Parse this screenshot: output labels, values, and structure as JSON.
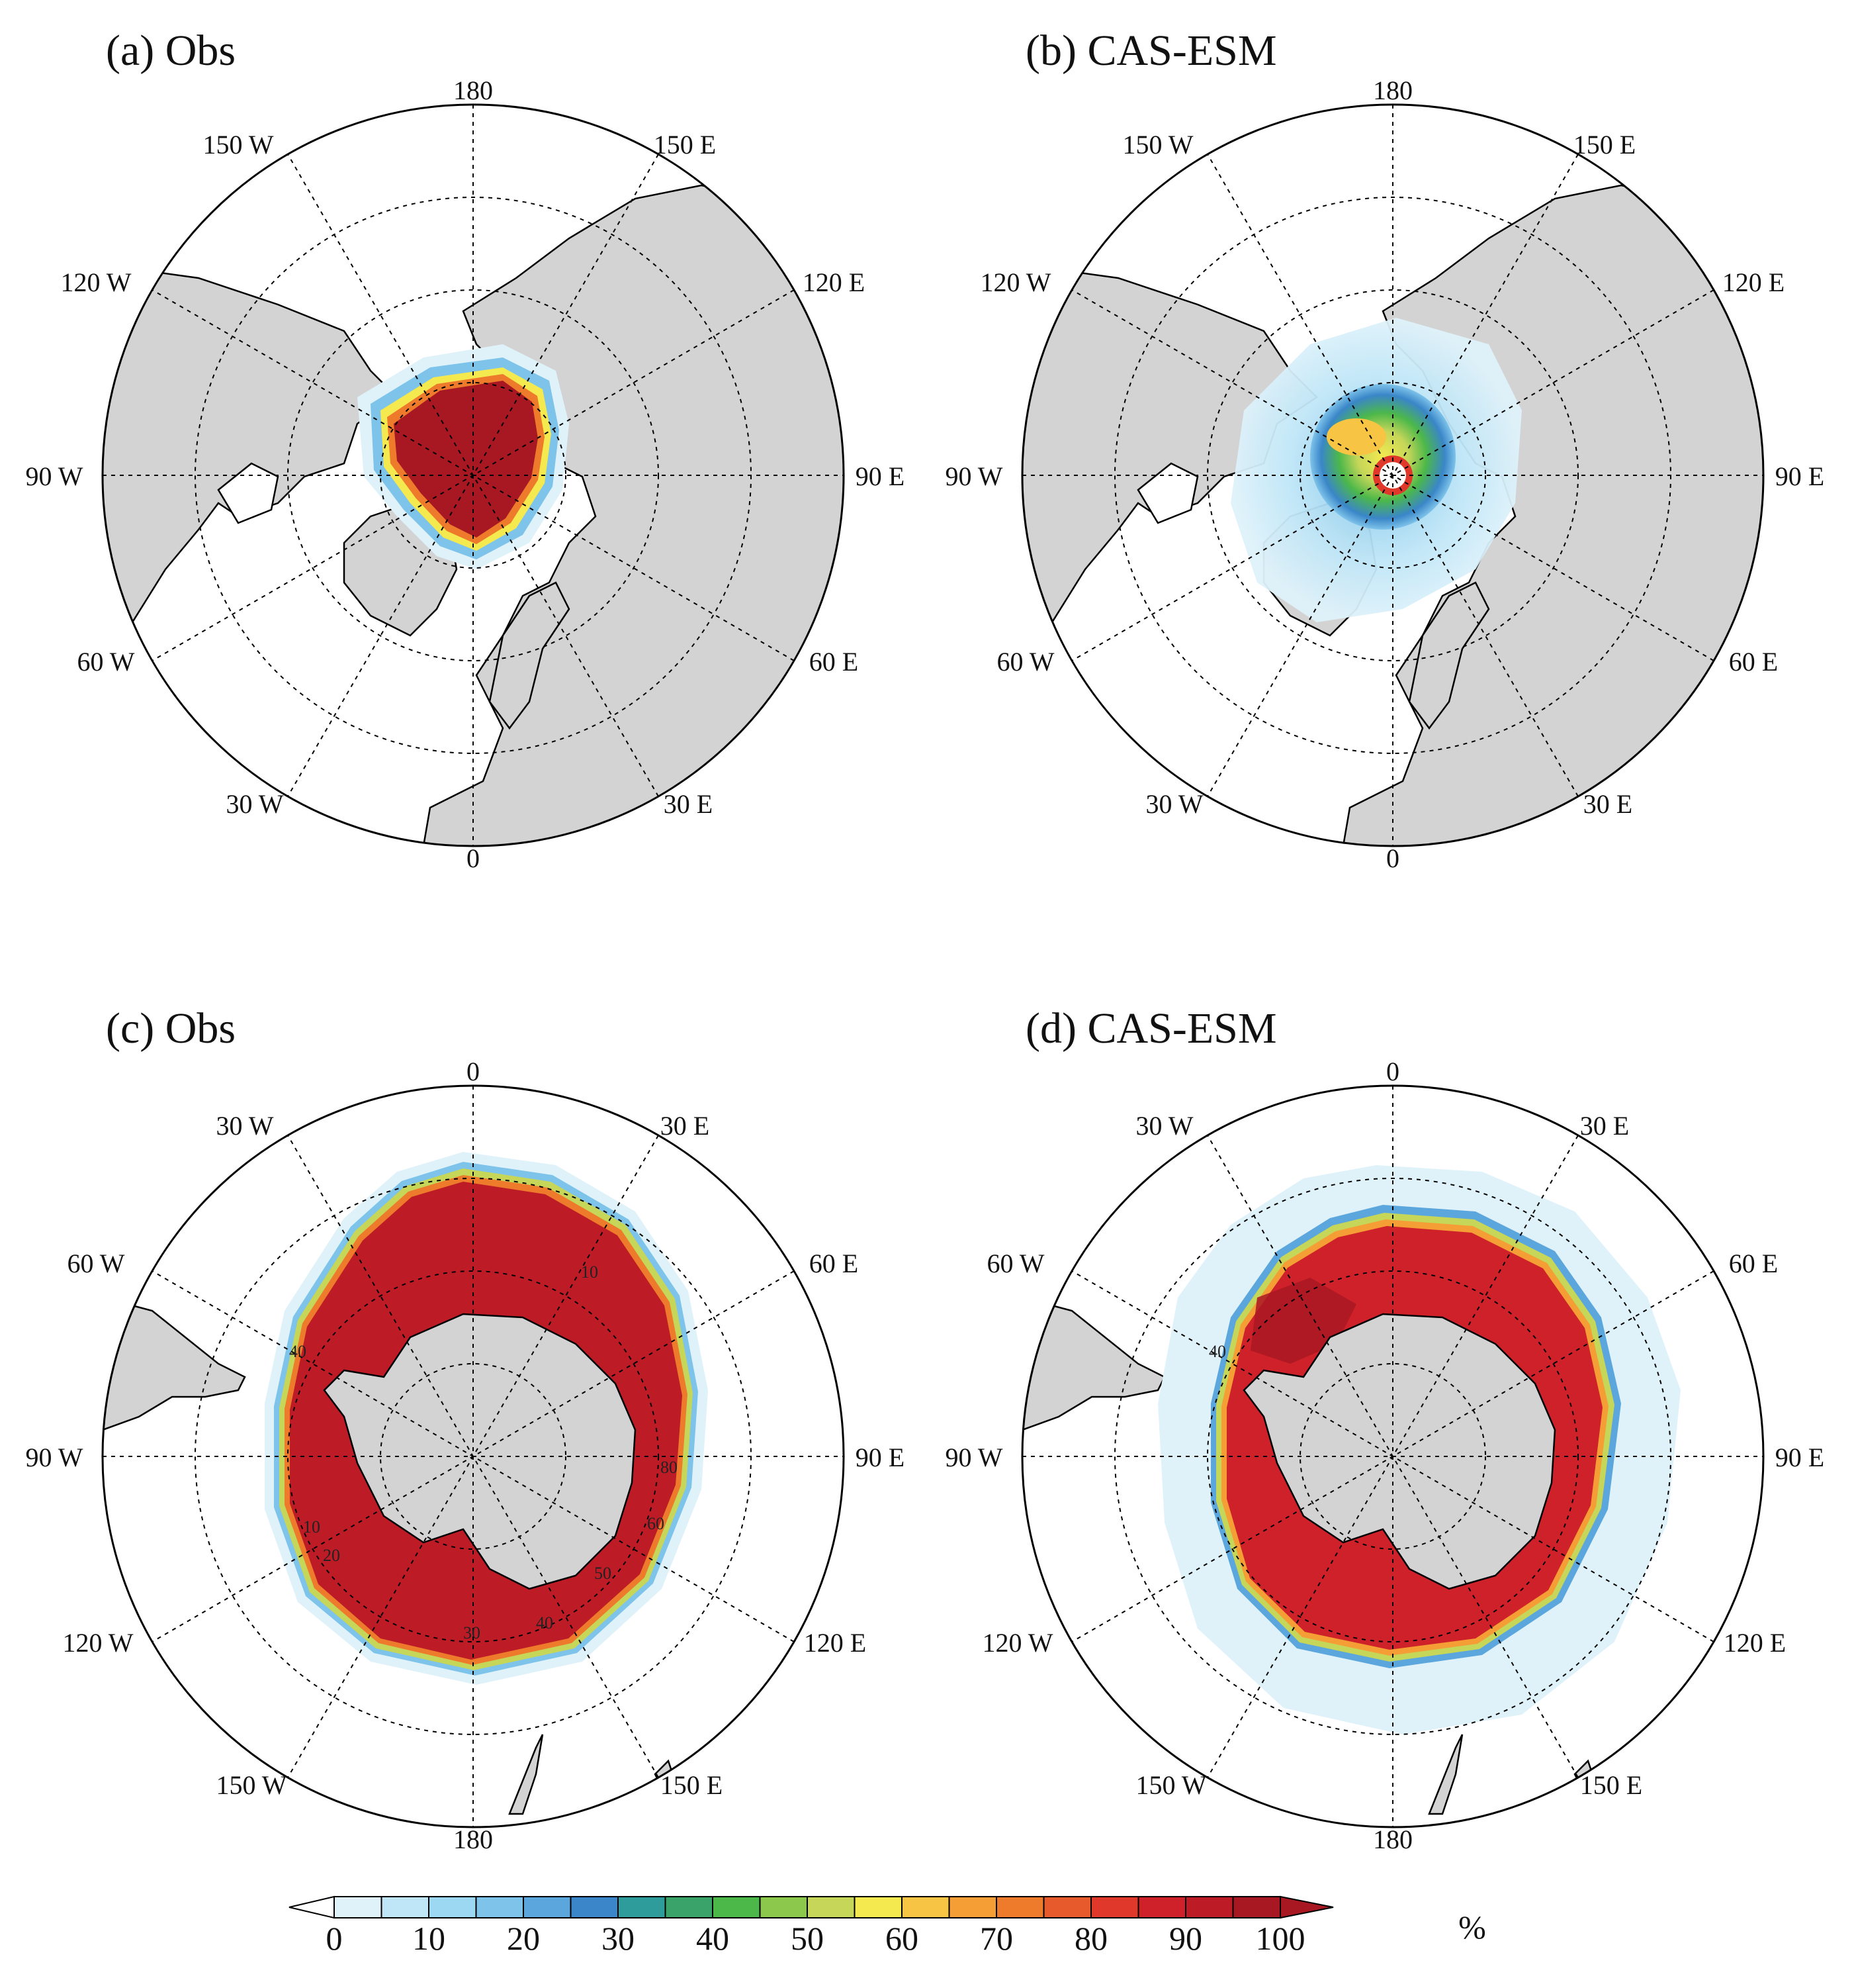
{
  "figure": {
    "panels": [
      {
        "id": "a",
        "title": "(a) Obs",
        "hemisphere": "north",
        "lon_labels": {
          "top": "180",
          "top_right": "150 E",
          "upper_right": "120 E",
          "right": "90 E",
          "lower_right": "60 E",
          "bottom_right": "30 E",
          "bottom": "0",
          "bottom_left": "30 W",
          "lower_left": "60 W",
          "left": "90 W",
          "upper_left": "120 W",
          "top_left": "150 W"
        },
        "contour_labels": []
      },
      {
        "id": "b",
        "title": "(b) CAS-ESM",
        "hemisphere": "north",
        "lon_labels": {
          "top": "180",
          "top_right": "150 E",
          "upper_right": "120 E",
          "right": "90 E",
          "lower_right": "60 E",
          "bottom_right": "30 E",
          "bottom": "0",
          "bottom_left": "30 W",
          "lower_left": "60 W",
          "left": "90 W",
          "upper_left": "120 W",
          "top_left": "150 W"
        },
        "contour_labels": []
      },
      {
        "id": "c",
        "title": "(c) Obs",
        "hemisphere": "south",
        "lon_labels": {
          "top": "0",
          "top_right": "30 E",
          "upper_right": "60 E",
          "right": "90 E",
          "lower_right": "120 E",
          "bottom_right": "150 E",
          "bottom": "180",
          "bottom_left": "150 W",
          "lower_left": "120 W",
          "left": "90 W",
          "upper_left": "60 W",
          "top_left": "30 W"
        },
        "contour_labels": [
          "10",
          "40",
          "10",
          "20",
          "30",
          "40",
          "50",
          "60",
          "80"
        ]
      },
      {
        "id": "d",
        "title": "(d) CAS-ESM",
        "hemisphere": "south",
        "lon_labels": {
          "top": "0",
          "top_right": "30 E",
          "upper_right": "60 E",
          "right": "90 E",
          "lower_right": "120 E",
          "bottom_right": "150 E",
          "bottom": "180",
          "bottom_left": "150 W",
          "lower_left": "120 W",
          "left": "90 W",
          "upper_left": "60 W",
          "top_left": "30 W"
        },
        "contour_labels": [
          "40"
        ]
      }
    ],
    "colorbar": {
      "tick_labels": [
        "0",
        "10",
        "20",
        "30",
        "40",
        "50",
        "60",
        "70",
        "80",
        "90",
        "100"
      ],
      "unit": "%",
      "colors": [
        "#dff2fa",
        "#bfe6f7",
        "#9dd8f3",
        "#7ec3ea",
        "#5aa6dd",
        "#3a86c8",
        "#2f9c9c",
        "#3aa36a",
        "#4cb84a",
        "#8cc84b",
        "#c5d659",
        "#f4e94f",
        "#f7c443",
        "#f49e35",
        "#ee7a2b",
        "#e65a2b",
        "#e0392b",
        "#cf2129",
        "#bd1b26",
        "#a81822"
      ],
      "under_color": "#ffffff",
      "over_color": "#a81822"
    }
  }
}
